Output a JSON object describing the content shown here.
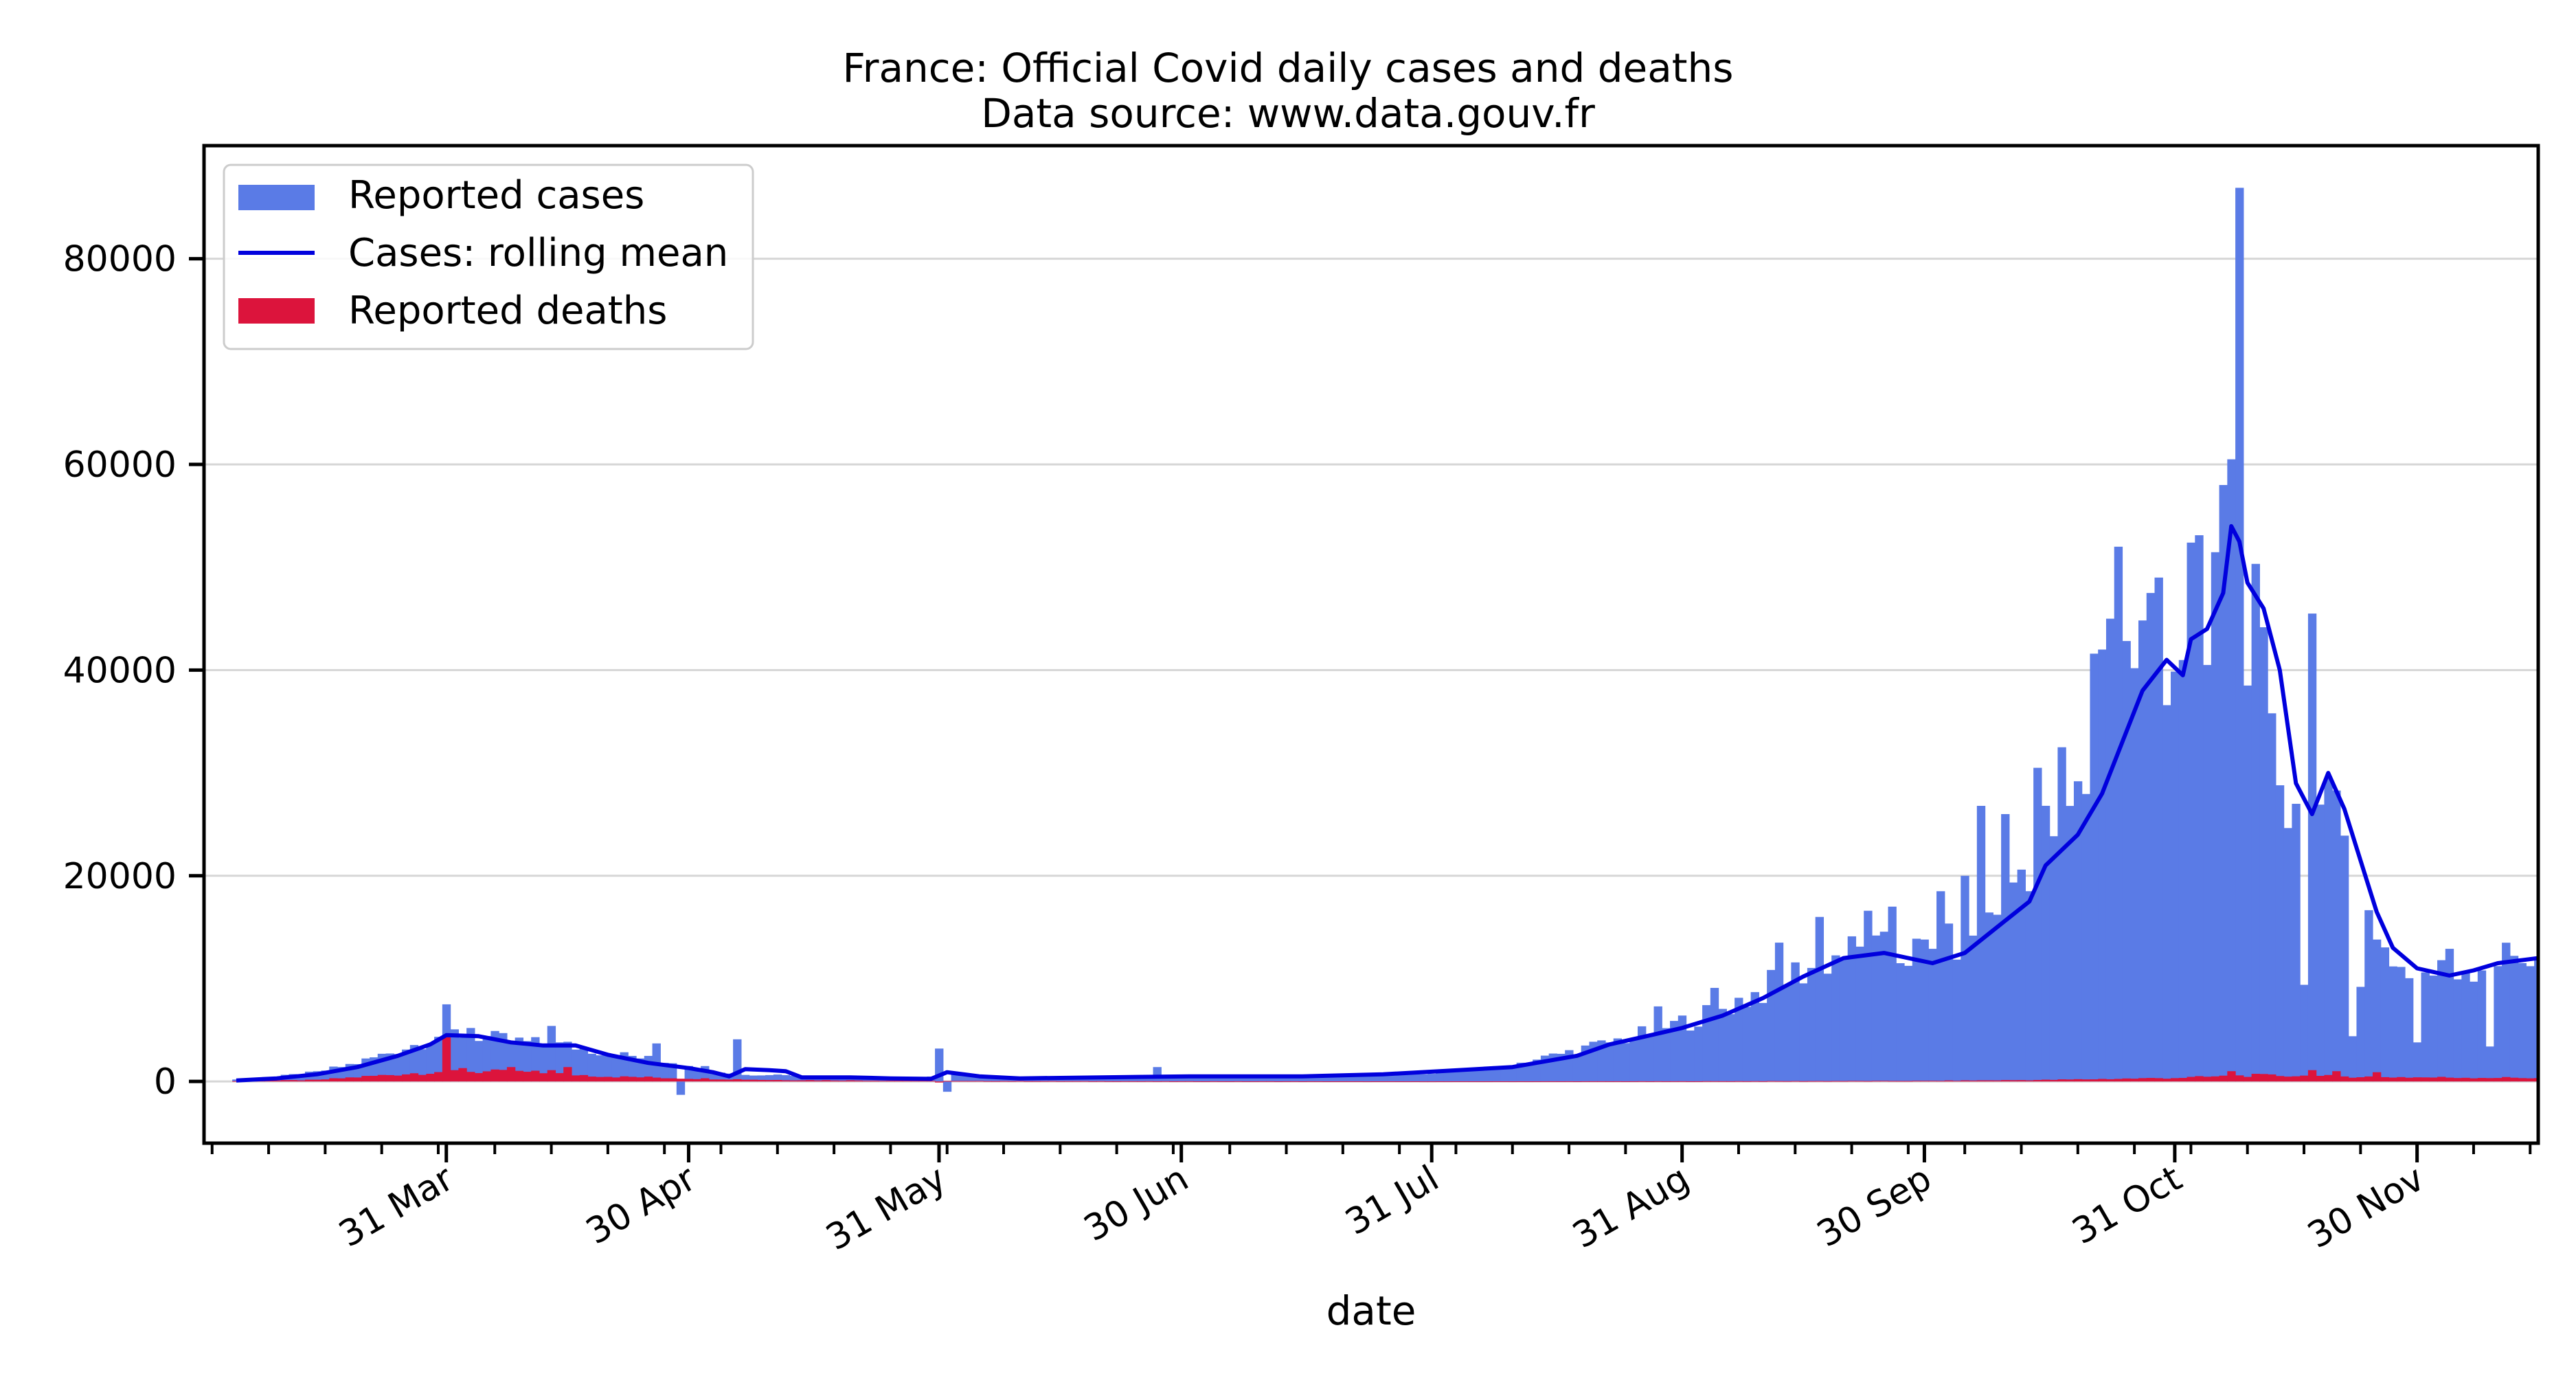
{
  "chart_data": {
    "type": "bar",
    "title": "France: Official Covid daily cases and deaths",
    "subtitle": "Data source: www.data.gouv.fr",
    "xlabel": "date",
    "ylabel": "",
    "x_range": [
      "2020-03-01",
      "2020-12-15"
    ],
    "ylim": [
      -6000,
      91000
    ],
    "y_ticks": [
      0,
      20000,
      40000,
      60000,
      80000
    ],
    "y_tick_labels": [
      "0",
      "20000",
      "40000",
      "60000",
      "80000"
    ],
    "x_ticks": [
      "2020-03-31",
      "2020-04-30",
      "2020-05-31",
      "2020-06-30",
      "2020-07-31",
      "2020-08-31",
      "2020-09-30",
      "2020-10-31",
      "2020-11-30"
    ],
    "x_tick_labels": [
      "31 Mar",
      "30 Apr",
      "31 May",
      "30 Jun",
      "31 Jul",
      "31 Aug",
      "30 Sep",
      "31 Oct",
      "30 Nov"
    ],
    "grid": "horizontal",
    "legend_position": "top-left",
    "cases_anchors": [
      [
        "2020-03-02",
        100
      ],
      [
        "2020-03-08",
        300
      ],
      [
        "2020-03-15",
        900
      ],
      [
        "2020-03-20",
        1800
      ],
      [
        "2020-03-24",
        2800
      ],
      [
        "2020-03-28",
        3800
      ],
      [
        "2020-03-31",
        4800
      ],
      [
        "2020-04-04",
        4400
      ],
      [
        "2020-04-10",
        3800
      ],
      [
        "2020-04-15",
        3500
      ],
      [
        "2020-04-20",
        2800
      ],
      [
        "2020-04-25",
        2200
      ],
      [
        "2020-04-30",
        1700
      ],
      [
        "2020-05-04",
        1000
      ],
      [
        "2020-05-08",
        600
      ],
      [
        "2020-05-12",
        700
      ],
      [
        "2020-05-16",
        500
      ],
      [
        "2020-05-22",
        300
      ],
      [
        "2020-05-28",
        250
      ],
      [
        "2020-06-02",
        700
      ],
      [
        "2020-06-05",
        400
      ],
      [
        "2020-06-15",
        400
      ],
      [
        "2020-06-30",
        450
      ],
      [
        "2020-07-05",
        500
      ],
      [
        "2020-07-15",
        500
      ],
      [
        "2020-07-25",
        700
      ],
      [
        "2020-08-01",
        900
      ],
      [
        "2020-08-08",
        1300
      ],
      [
        "2020-08-15",
        2500
      ],
      [
        "2020-08-22",
        3800
      ],
      [
        "2020-08-28",
        5000
      ],
      [
        "2020-09-03",
        6500
      ],
      [
        "2020-09-09",
        8500
      ],
      [
        "2020-09-14",
        10500
      ],
      [
        "2020-09-20",
        12500
      ],
      [
        "2020-09-26",
        12500
      ],
      [
        "2020-10-02",
        12500
      ],
      [
        "2020-10-07",
        15500
      ],
      [
        "2020-10-11",
        19500
      ],
      [
        "2020-10-15",
        24000
      ],
      [
        "2020-10-19",
        27000
      ],
      [
        "2020-10-22",
        33000
      ],
      [
        "2020-10-25",
        41000
      ],
      [
        "2020-10-28",
        43000
      ],
      [
        "2020-10-31",
        42000
      ],
      [
        "2020-11-03",
        46000
      ],
      [
        "2020-11-05",
        50000
      ],
      [
        "2020-11-06",
        55000
      ],
      [
        "2020-11-08",
        50000
      ],
      [
        "2020-11-10",
        43000
      ],
      [
        "2020-11-12",
        33000
      ],
      [
        "2020-11-15",
        25000
      ],
      [
        "2020-11-18",
        26000
      ],
      [
        "2020-11-21",
        24000
      ],
      [
        "2020-11-24",
        16000
      ],
      [
        "2020-11-28",
        11000
      ],
      [
        "2020-12-02",
        10500
      ],
      [
        "2020-12-06",
        11000
      ],
      [
        "2020-12-10",
        11800
      ],
      [
        "2020-12-15",
        12500
      ]
    ],
    "cases_spikes": [
      [
        "2020-03-31",
        7500
      ],
      [
        "2020-04-03",
        5200
      ],
      [
        "2020-04-13",
        5400
      ],
      [
        "2020-04-26",
        3700
      ],
      [
        "2020-04-29",
        -1300
      ],
      [
        "2020-05-06",
        4100
      ],
      [
        "2020-05-31",
        3200
      ],
      [
        "2020-06-01",
        -1000
      ],
      [
        "2020-06-27",
        1400
      ],
      [
        "2020-08-28",
        7300
      ],
      [
        "2020-09-04",
        9100
      ],
      [
        "2020-09-12",
        13500
      ],
      [
        "2020-09-17",
        16000
      ],
      [
        "2020-09-23",
        16600
      ],
      [
        "2020-09-26",
        17000
      ],
      [
        "2020-10-02",
        18500
      ],
      [
        "2020-10-05",
        20000
      ],
      [
        "2020-10-07",
        26800
      ],
      [
        "2020-10-10",
        26000
      ],
      [
        "2020-10-14",
        30500
      ],
      [
        "2020-10-17",
        32500
      ],
      [
        "2020-10-21",
        41600
      ],
      [
        "2020-10-22",
        42000
      ],
      [
        "2020-10-23",
        45000
      ],
      [
        "2020-10-24",
        52000
      ],
      [
        "2020-10-28",
        47500
      ],
      [
        "2020-10-29",
        49000
      ],
      [
        "2020-11-02",
        52400
      ],
      [
        "2020-11-04",
        40500
      ],
      [
        "2020-11-06",
        58000
      ],
      [
        "2020-11-07",
        60500
      ],
      [
        "2020-11-08",
        86900
      ],
      [
        "2020-11-09",
        38500
      ],
      [
        "2020-11-12",
        35800
      ],
      [
        "2020-11-15",
        27000
      ],
      [
        "2020-11-16",
        9400
      ],
      [
        "2020-11-17",
        45500
      ],
      [
        "2020-11-22",
        4400
      ],
      [
        "2020-11-23",
        9200
      ],
      [
        "2020-11-25",
        13800
      ],
      [
        "2020-11-30",
        3800
      ],
      [
        "2020-12-04",
        12900
      ],
      [
        "2020-12-09",
        3400
      ]
    ],
    "deaths_anchors": [
      [
        "2020-03-01",
        0
      ],
      [
        "2020-03-15",
        150
      ],
      [
        "2020-03-25",
        700
      ],
      [
        "2020-03-31",
        1000
      ],
      [
        "2020-04-10",
        900
      ],
      [
        "2020-04-20",
        500
      ],
      [
        "2020-04-30",
        300
      ],
      [
        "2020-05-10",
        150
      ],
      [
        "2020-05-31",
        50
      ],
      [
        "2020-06-30",
        20
      ],
      [
        "2020-07-31",
        10
      ],
      [
        "2020-08-31",
        20
      ],
      [
        "2020-09-30",
        60
      ],
      [
        "2020-10-15",
        150
      ],
      [
        "2020-10-31",
        350
      ],
      [
        "2020-11-10",
        600
      ],
      [
        "2020-11-20",
        500
      ],
      [
        "2020-11-30",
        400
      ],
      [
        "2020-12-15",
        350
      ]
    ],
    "deaths_spikes": [
      [
        "2020-03-31",
        4300
      ],
      [
        "2020-04-02",
        1300
      ],
      [
        "2020-04-08",
        1400
      ],
      [
        "2020-04-13",
        1100
      ],
      [
        "2020-04-15",
        1400
      ],
      [
        "2020-04-22",
        500
      ],
      [
        "2020-05-31",
        -100
      ],
      [
        "2020-11-07",
        1000
      ],
      [
        "2020-11-17",
        1100
      ],
      [
        "2020-11-20",
        1000
      ],
      [
        "2020-11-25",
        900
      ]
    ],
    "rolling_mean": [
      [
        "2020-03-05",
        100
      ],
      [
        "2020-03-10",
        300
      ],
      [
        "2020-03-15",
        700
      ],
      [
        "2020-03-20",
        1400
      ],
      [
        "2020-03-25",
        2500
      ],
      [
        "2020-03-29",
        3600
      ],
      [
        "2020-03-31",
        4500
      ],
      [
        "2020-04-04",
        4400
      ],
      [
        "2020-04-08",
        3800
      ],
      [
        "2020-04-12",
        3500
      ],
      [
        "2020-04-16",
        3500
      ],
      [
        "2020-04-20",
        2600
      ],
      [
        "2020-04-25",
        1800
      ],
      [
        "2020-04-30",
        1300
      ],
      [
        "2020-05-03",
        900
      ],
      [
        "2020-05-05",
        500
      ],
      [
        "2020-05-07",
        1200
      ],
      [
        "2020-05-10",
        1100
      ],
      [
        "2020-05-12",
        1000
      ],
      [
        "2020-05-14",
        400
      ],
      [
        "2020-05-20",
        400
      ],
      [
        "2020-05-25",
        300
      ],
      [
        "2020-05-30",
        250
      ],
      [
        "2020-06-01",
        900
      ],
      [
        "2020-06-05",
        500
      ],
      [
        "2020-06-10",
        300
      ],
      [
        "2020-06-20",
        400
      ],
      [
        "2020-07-01",
        500
      ],
      [
        "2020-07-15",
        500
      ],
      [
        "2020-07-25",
        700
      ],
      [
        "2020-08-01",
        1000
      ],
      [
        "2020-08-10",
        1400
      ],
      [
        "2020-08-18",
        2500
      ],
      [
        "2020-08-22",
        3600
      ],
      [
        "2020-08-26",
        4300
      ],
      [
        "2020-08-31",
        5200
      ],
      [
        "2020-09-05",
        6400
      ],
      [
        "2020-09-10",
        8100
      ],
      [
        "2020-09-15",
        10200
      ],
      [
        "2020-09-20",
        12000
      ],
      [
        "2020-09-25",
        12500
      ],
      [
        "2020-10-01",
        11500
      ],
      [
        "2020-10-05",
        12500
      ],
      [
        "2020-10-09",
        15000
      ],
      [
        "2020-10-13",
        17500
      ],
      [
        "2020-10-15",
        21000
      ],
      [
        "2020-10-19",
        24000
      ],
      [
        "2020-10-22",
        28000
      ],
      [
        "2020-10-25",
        34000
      ],
      [
        "2020-10-27",
        38000
      ],
      [
        "2020-10-30",
        41000
      ],
      [
        "2020-11-01",
        39500
      ],
      [
        "2020-11-02",
        43000
      ],
      [
        "2020-11-04",
        44000
      ],
      [
        "2020-11-06",
        47500
      ],
      [
        "2020-11-07",
        54000
      ],
      [
        "2020-11-08",
        52500
      ],
      [
        "2020-11-09",
        48500
      ],
      [
        "2020-11-11",
        46000
      ],
      [
        "2020-11-13",
        40000
      ],
      [
        "2020-11-15",
        29000
      ],
      [
        "2020-11-17",
        26000
      ],
      [
        "2020-11-19",
        30000
      ],
      [
        "2020-11-21",
        26500
      ],
      [
        "2020-11-23",
        21500
      ],
      [
        "2020-11-25",
        16500
      ],
      [
        "2020-11-27",
        13000
      ],
      [
        "2020-11-30",
        11000
      ],
      [
        "2020-12-04",
        10300
      ],
      [
        "2020-12-07",
        10800
      ],
      [
        "2020-12-10",
        11500
      ],
      [
        "2020-12-15",
        12000
      ]
    ],
    "series": [
      {
        "name": "Reported cases",
        "kind": "bar",
        "color": "#5a7be6"
      },
      {
        "name": "Cases: rolling mean",
        "kind": "line",
        "color": "#0000dd"
      },
      {
        "name": "Reported deaths",
        "kind": "bar",
        "color": "#dc143c"
      }
    ]
  }
}
